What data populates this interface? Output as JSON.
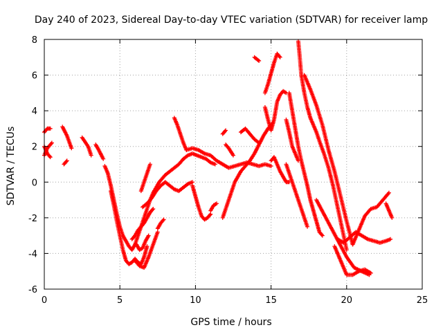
{
  "chart_data": {
    "type": "scatter",
    "title": "Day 240 of 2023, Sidereal Day-to-day VTEC variation (SDTVAR) for receiver lamp",
    "xlabel": "GPS time / hours",
    "ylabel": "SDTVAR / TECUs",
    "xlim": [
      0,
      25
    ],
    "ylim": [
      -6,
      8
    ],
    "xticks": [
      "0",
      "5",
      "10",
      "15",
      "20",
      "25"
    ],
    "yticks": [
      "-6",
      "-4",
      "-2",
      "0",
      "2",
      "4",
      "6",
      "8"
    ],
    "grid": true,
    "marker": "+",
    "color": "#ff0000",
    "tracks": [
      {
        "x": [
          0.0,
          0.2,
          0.4
        ],
        "y": [
          2.8,
          3.0,
          3.0
        ]
      },
      {
        "x": [
          0.0,
          0.2,
          0.5
        ],
        "y": [
          1.5,
          1.9,
          2.2
        ]
      },
      {
        "x": [
          0.0,
          0.2,
          0.4
        ],
        "y": [
          2.0,
          1.6,
          1.4
        ]
      },
      {
        "x": [
          1.2,
          1.5,
          1.8
        ],
        "y": [
          3.1,
          2.6,
          1.9
        ]
      },
      {
        "x": [
          1.3,
          1.5
        ],
        "y": [
          1.0,
          1.2
        ]
      },
      {
        "x": [
          2.5,
          2.9,
          3.1
        ],
        "y": [
          2.5,
          2.0,
          1.5
        ]
      },
      {
        "x": [
          3.4,
          3.6,
          3.9
        ],
        "y": [
          2.1,
          1.8,
          1.3
        ]
      },
      {
        "x": [
          4.0,
          4.2,
          4.4,
          4.6,
          4.8,
          5.0,
          5.2,
          5.4,
          5.6,
          5.8,
          6.0,
          6.2,
          6.4,
          6.6,
          6.8,
          7.0,
          7.2,
          7.4,
          7.6,
          7.8,
          8.0,
          8.3,
          8.6,
          8.9,
          9.2,
          9.5,
          9.8,
          10.1,
          10.4,
          10.7,
          11.0,
          11.3
        ],
        "y": [
          0.9,
          0.5,
          -0.2,
          -1.0,
          -1.8,
          -2.5,
          -3.0,
          -3.3,
          -3.6,
          -3.8,
          -3.5,
          -3.0,
          -2.5,
          -2.0,
          -1.5,
          -1.0,
          -0.6,
          -0.3,
          0.0,
          0.2,
          0.4,
          0.6,
          0.8,
          1.0,
          1.3,
          1.5,
          1.6,
          1.5,
          1.4,
          1.3,
          1.1,
          1.0
        ]
      },
      {
        "x": [
          4.4,
          4.6,
          4.8,
          5.0,
          5.2,
          5.4,
          5.6,
          5.8,
          6.0,
          6.2,
          6.4,
          6.6,
          6.8
        ],
        "y": [
          -0.5,
          -1.3,
          -2.2,
          -3.0,
          -3.8,
          -4.4,
          -4.6,
          -4.5,
          -4.3,
          -4.5,
          -4.6,
          -4.2,
          -3.6
        ]
      },
      {
        "x": [
          5.8,
          6.0,
          6.2,
          6.4,
          6.6,
          6.8,
          7.0,
          7.2
        ],
        "y": [
          -3.2,
          -3.0,
          -2.7,
          -2.5,
          -2.3,
          -2.0,
          -1.7,
          -1.5
        ]
      },
      {
        "x": [
          6.0,
          6.3,
          6.6,
          6.9,
          7.2,
          7.5
        ],
        "y": [
          -4.4,
          -4.7,
          -4.8,
          -4.2,
          -3.5,
          -2.8
        ]
      },
      {
        "x": [
          6.1,
          6.3,
          6.5,
          6.7,
          6.9
        ],
        "y": [
          -3.5,
          -3.8,
          -3.7,
          -3.3,
          -3.0
        ]
      },
      {
        "x": [
          7.5,
          7.7,
          7.9
        ],
        "y": [
          -2.6,
          -2.3,
          -2.1
        ]
      },
      {
        "x": [
          6.4,
          6.6,
          6.8,
          7.0
        ],
        "y": [
          -0.5,
          0.0,
          0.5,
          1.0
        ]
      },
      {
        "x": [
          6.5,
          6.8,
          7.1,
          7.4,
          7.7,
          8.0,
          8.3,
          8.6,
          8.9,
          9.2,
          9.5,
          9.8
        ],
        "y": [
          -1.4,
          -1.2,
          -0.9,
          -0.5,
          -0.2,
          0.0,
          -0.2,
          -0.4,
          -0.5,
          -0.3,
          -0.1,
          0.0
        ]
      },
      {
        "x": [
          8.6,
          8.8,
          9.0,
          9.2,
          9.4
        ],
        "y": [
          3.6,
          3.2,
          2.7,
          2.2,
          1.8
        ]
      },
      {
        "x": [
          9.4,
          9.8,
          10.2,
          10.6,
          11.0,
          11.4,
          11.8,
          12.2,
          12.6,
          13.0,
          13.4,
          13.8,
          14.2,
          14.6,
          15.0
        ],
        "y": [
          1.8,
          1.9,
          1.8,
          1.6,
          1.5,
          1.2,
          1.0,
          0.8,
          0.9,
          1.0,
          1.1,
          1.0,
          0.9,
          1.0,
          0.9
        ]
      },
      {
        "x": [
          9.8,
          10.0,
          10.2,
          10.4,
          10.6,
          10.8,
          11.0
        ],
        "y": [
          -0.2,
          -0.8,
          -1.4,
          -1.9,
          -2.1,
          -2.0,
          -1.8
        ]
      },
      {
        "x": [
          11.0,
          11.2,
          11.4
        ],
        "y": [
          -1.6,
          -1.3,
          -1.2
        ]
      },
      {
        "x": [
          11.8,
          12.0,
          12.2,
          12.4,
          12.6,
          12.8,
          13.0,
          13.3,
          13.6,
          13.9,
          14.2,
          14.5,
          14.8,
          15.1
        ],
        "y": [
          -2.0,
          -1.5,
          -1.0,
          -0.5,
          0.0,
          0.3,
          0.6,
          0.9,
          1.2,
          1.6,
          2.1,
          2.6,
          3.0,
          3.3
        ]
      },
      {
        "x": [
          11.8,
          12.0
        ],
        "y": [
          2.7,
          2.9
        ]
      },
      {
        "x": [
          12.0,
          12.2,
          12.5
        ],
        "y": [
          2.1,
          1.9,
          1.5
        ]
      },
      {
        "x": [
          13.0,
          13.3,
          13.6,
          13.9,
          14.2
        ],
        "y": [
          2.8,
          3.0,
          2.7,
          2.4,
          2.2
        ]
      },
      {
        "x": [
          13.9,
          14.2
        ],
        "y": [
          7.0,
          6.8
        ]
      },
      {
        "x": [
          14.6,
          14.8,
          15.0,
          15.2,
          15.4,
          15.6
        ],
        "y": [
          5.0,
          5.5,
          6.1,
          6.7,
          7.2,
          7.0
        ]
      },
      {
        "x": [
          14.6,
          14.8,
          15.0,
          15.2,
          15.4,
          15.6,
          15.8,
          16.0
        ],
        "y": [
          4.2,
          3.5,
          2.9,
          3.5,
          4.5,
          4.9,
          5.1,
          5.0
        ]
      },
      {
        "x": [
          15.0,
          15.2,
          15.4,
          15.6,
          15.8,
          16.0,
          16.2
        ],
        "y": [
          1.2,
          1.4,
          1.0,
          0.6,
          0.3,
          0.0,
          0.0
        ]
      },
      {
        "x": [
          16.0,
          16.2,
          16.4,
          16.6,
          16.8
        ],
        "y": [
          3.5,
          2.8,
          2.0,
          1.6,
          1.2
        ]
      },
      {
        "x": [
          16.2,
          16.4,
          16.6,
          16.8,
          17.0,
          17.2,
          17.4,
          17.6,
          17.8,
          18.0,
          18.2,
          18.4
        ],
        "y": [
          5.0,
          4.0,
          3.0,
          2.0,
          1.2,
          0.5,
          -0.2,
          -1.0,
          -1.6,
          -2.2,
          -2.8,
          -3.0
        ]
      },
      {
        "x": [
          16.0,
          16.2,
          16.4,
          16.6,
          16.8,
          17.0,
          17.2,
          17.4
        ],
        "y": [
          1.0,
          0.5,
          0.0,
          -0.5,
          -1.0,
          -1.5,
          -2.0,
          -2.5
        ]
      },
      {
        "x": [
          16.8,
          16.9,
          17.0,
          17.2,
          17.4,
          17.6,
          17.8,
          18.0,
          18.2,
          18.5,
          18.8,
          19.1,
          19.4,
          19.7,
          20.0
        ],
        "y": [
          7.9,
          7.0,
          6.0,
          5.0,
          4.2,
          3.6,
          3.2,
          2.8,
          2.3,
          1.6,
          0.8,
          -0.2,
          -1.4,
          -2.6,
          -3.8
        ]
      },
      {
        "x": [
          17.2,
          17.6,
          18.0,
          18.4,
          18.8,
          19.2,
          19.6,
          20.0,
          20.4
        ],
        "y": [
          6.0,
          5.2,
          4.3,
          3.2,
          1.8,
          0.6,
          -0.8,
          -2.2,
          -3.5
        ]
      },
      {
        "x": [
          18.0,
          18.5,
          19.0,
          19.5,
          20.0,
          20.5,
          21.0,
          21.5
        ],
        "y": [
          -1.0,
          -1.8,
          -2.6,
          -3.4,
          -4.2,
          -4.8,
          -5.0,
          -5.2
        ]
      },
      {
        "x": [
          19.2,
          19.6,
          20.0,
          20.4,
          20.8,
          21.2,
          21.6
        ],
        "y": [
          -3.6,
          -4.4,
          -5.2,
          -5.2,
          -5.0,
          -4.9,
          -5.1
        ]
      },
      {
        "x": [
          19.4,
          19.8,
          20.2,
          20.6,
          21.0,
          21.4,
          21.8,
          22.2,
          22.6,
          22.9
        ],
        "y": [
          -3.2,
          -3.4,
          -3.1,
          -2.8,
          -3.0,
          -3.2,
          -3.3,
          -3.4,
          -3.3,
          -3.2
        ]
      },
      {
        "x": [
          20.4,
          20.8,
          21.2,
          21.6,
          22.0,
          22.4,
          22.8
        ],
        "y": [
          -3.5,
          -2.7,
          -1.9,
          -1.5,
          -1.4,
          -1.0,
          -0.6
        ]
      },
      {
        "x": [
          22.6,
          22.8,
          23.0
        ],
        "y": [
          -1.2,
          -1.6,
          -2.0
        ]
      }
    ]
  }
}
